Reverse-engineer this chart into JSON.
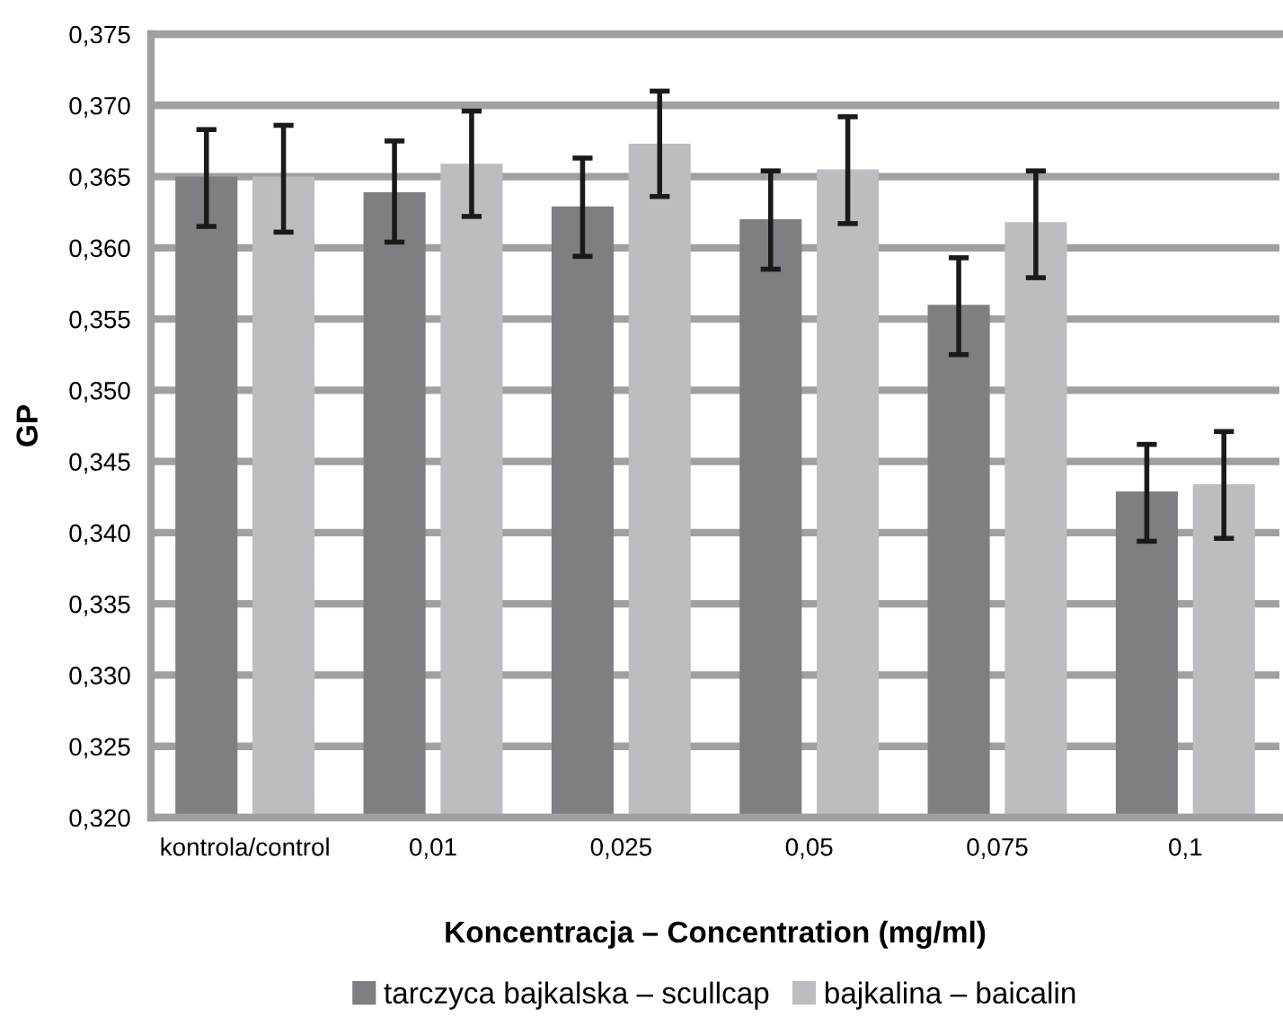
{
  "chart_data": {
    "type": "bar",
    "xlabel": "Koncentracja – Concentration (mg/ml)",
    "ylabel": "GP",
    "categories": [
      "kontrola/control",
      "0,01",
      "0,025",
      "0,05",
      "0,075",
      "0,1"
    ],
    "series": [
      {
        "name": "tarczyca bajkalska – scullcap",
        "color": "#7f7f83",
        "values": [
          0.365,
          0.3639,
          0.3629,
          0.362,
          0.356,
          0.3429
        ],
        "errors": [
          [
            0.3615,
            0.3683
          ],
          [
            0.3604,
            0.3675
          ],
          [
            0.3594,
            0.3663
          ],
          [
            0.3585,
            0.3654
          ],
          [
            0.3525,
            0.3593
          ],
          [
            0.3394,
            0.3462
          ]
        ]
      },
      {
        "name": "bajkalina – baicalin",
        "color": "#bcbdc0",
        "values": [
          0.365,
          0.3659,
          0.3673,
          0.3655,
          0.3618,
          0.3434
        ],
        "errors": [
          [
            0.3611,
            0.3686
          ],
          [
            0.3622,
            0.3696
          ],
          [
            0.3636,
            0.371
          ],
          [
            0.3617,
            0.3692
          ],
          [
            0.3579,
            0.3654
          ],
          [
            0.3396,
            0.3471
          ]
        ]
      }
    ],
    "ylim": [
      0.32,
      0.375
    ],
    "yticks": [
      {
        "value": 0.32,
        "label": "0,320"
      },
      {
        "value": 0.325,
        "label": "0,325"
      },
      {
        "value": 0.33,
        "label": "0,330"
      },
      {
        "value": 0.335,
        "label": "0,335"
      },
      {
        "value": 0.34,
        "label": "0,340"
      },
      {
        "value": 0.345,
        "label": "0,345"
      },
      {
        "value": 0.35,
        "label": "0,350"
      },
      {
        "value": 0.355,
        "label": "0,355"
      },
      {
        "value": 0.36,
        "label": "0,360"
      },
      {
        "value": 0.365,
        "label": "0,365"
      },
      {
        "value": 0.37,
        "label": "0,370"
      },
      {
        "value": 0.375,
        "label": "0,375"
      }
    ],
    "grid": "y",
    "legend": "bottom"
  }
}
